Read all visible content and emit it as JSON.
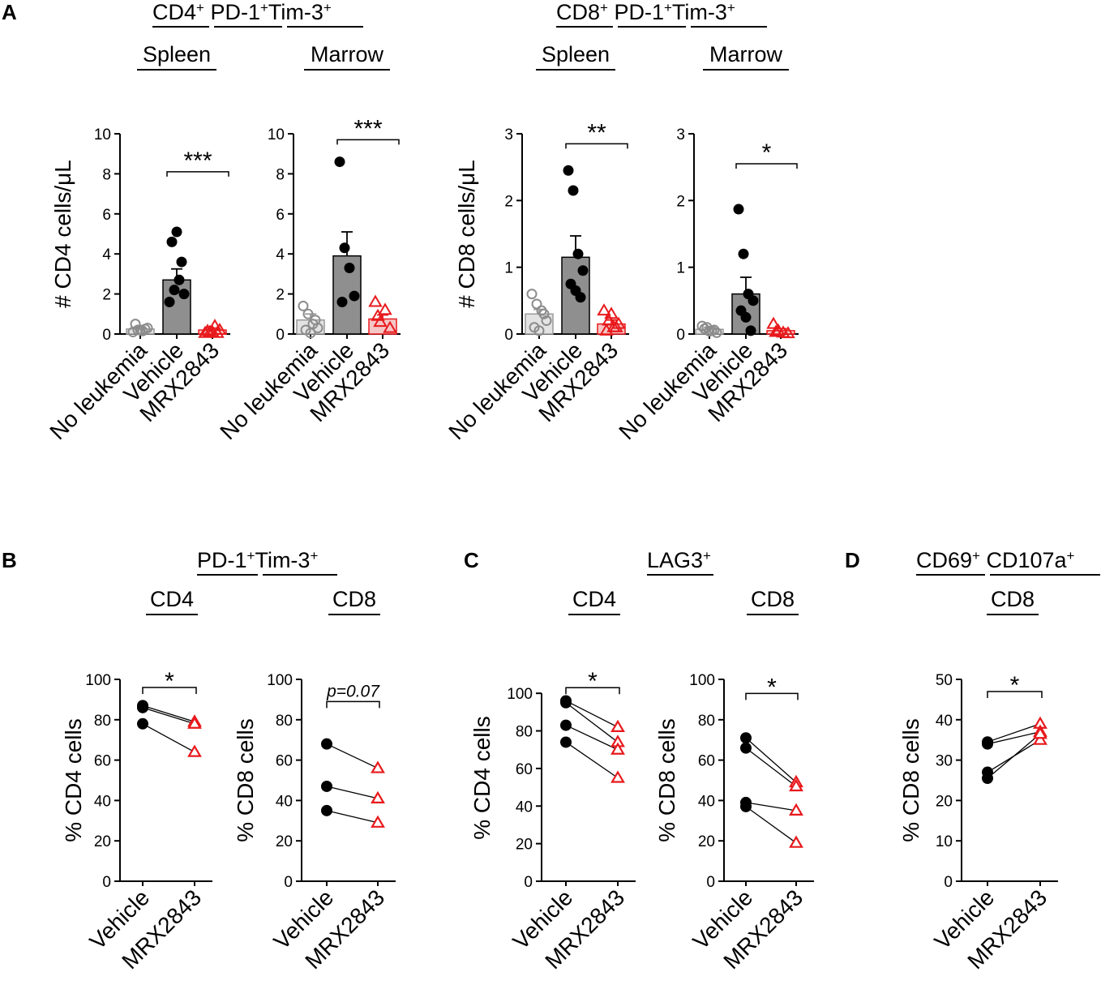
{
  "panel_letters": {
    "A": "A",
    "B": "B",
    "C": "C",
    "D": "D"
  },
  "headers": {
    "a_cd4": {
      "pre": "CD4",
      "mid": " PD-1",
      "post": "Tim-3"
    },
    "a_cd8": {
      "pre": "CD8",
      "mid": " PD-1",
      "post": "Tim-3"
    },
    "b": {
      "pre": "PD-1",
      "post": "Tim-3"
    },
    "c": {
      "pre": "LAG3"
    },
    "d": {
      "pre": "CD69",
      "post": " CD107a"
    }
  },
  "sup": "+",
  "colors": {
    "gray_open": "#8c8c8c",
    "black": "#000000",
    "red": "#e8191c",
    "bar_gray": "#e3e3e3",
    "bar_dark": "#8f8f8f",
    "bar_red": "#f5c6c6"
  },
  "chart_data": [
    {
      "id": "A_CD4_Spleen",
      "type": "bar",
      "title": "Spleen",
      "ylabel": "# CD4 cells/μL",
      "ylim": [
        0,
        10
      ],
      "yticks": [
        0,
        2,
        4,
        6,
        8,
        10
      ],
      "categories": [
        "No leukemia",
        "Vehicle",
        "MRX2843"
      ],
      "means": [
        0.25,
        2.7,
        0.2
      ],
      "sem": [
        0.1,
        0.55,
        0.1
      ],
      "points": [
        [
          0.1,
          0.2,
          0.15,
          0.3,
          0.5,
          0.2,
          0.25
        ],
        [
          1.6,
          2.2,
          2.7,
          2.0,
          4.6,
          5.1,
          3.6
        ],
        [
          0.05,
          0.1,
          0.4,
          0.2,
          0.15,
          0.1,
          0.05
        ]
      ],
      "significance": {
        "label": "***",
        "between": [
          "Vehicle",
          "MRX2843"
        ],
        "level": 8.1
      }
    },
    {
      "id": "A_CD4_Marrow",
      "type": "bar",
      "title": "Marrow",
      "ylabel": "",
      "ylim": [
        0,
        10
      ],
      "yticks": [
        0,
        2,
        4,
        6,
        8,
        10
      ],
      "categories": [
        "No leukemia",
        "Vehicle",
        "MRX2843"
      ],
      "means": [
        0.7,
        3.9,
        0.75
      ],
      "sem": [
        0.3,
        1.2,
        0.2
      ],
      "points": [
        [
          1.4,
          1.0,
          0.5,
          0.3,
          0.2,
          0.05,
          0.7
        ],
        [
          8.6,
          4.3,
          3.3,
          1.9,
          1.6
        ],
        [
          1.6,
          0.6,
          1.2,
          0.3,
          0.9
        ]
      ],
      "significance": {
        "label": "***",
        "between": [
          "Vehicle",
          "MRX2843"
        ],
        "level": 9.7
      }
    },
    {
      "id": "A_CD8_Spleen",
      "type": "bar",
      "title": "Spleen",
      "ylabel": "# CD8 cells/μL",
      "ylim": [
        0,
        3
      ],
      "yticks": [
        0,
        1,
        2,
        3
      ],
      "categories": [
        "No leukemia",
        "Vehicle",
        "MRX2843"
      ],
      "means": [
        0.3,
        1.15,
        0.15
      ],
      "sem": [
        0.07,
        0.32,
        0.06
      ],
      "points": [
        [
          0.6,
          0.45,
          0.35,
          0.2,
          0.1,
          0.05,
          0.3
        ],
        [
          2.45,
          2.15,
          1.2,
          0.95,
          0.75,
          0.65,
          0.55
        ],
        [
          0.35,
          0.2,
          0.1,
          0.15,
          0.05,
          0.3,
          0.1
        ]
      ],
      "significance": {
        "label": "**",
        "between": [
          "Vehicle",
          "MRX2843"
        ],
        "level": 2.85
      }
    },
    {
      "id": "A_CD8_Marrow",
      "type": "bar",
      "title": "Marrow",
      "ylabel": "",
      "ylim": [
        0,
        3
      ],
      "yticks": [
        0,
        1,
        2,
        3
      ],
      "categories": [
        "No leukemia",
        "Vehicle",
        "MRX2843"
      ],
      "means": [
        0.07,
        0.6,
        0.05
      ],
      "sem": [
        0.03,
        0.25,
        0.03
      ],
      "points": [
        [
          0.12,
          0.1,
          0.05,
          0.02,
          0.08,
          0.04,
          0.06
        ],
        [
          1.87,
          1.2,
          0.6,
          0.5,
          0.35,
          0.25,
          0.05
        ],
        [
          0.15,
          0.05,
          0.02,
          0.01,
          0.03
        ]
      ],
      "significance": {
        "label": "*",
        "between": [
          "Vehicle",
          "MRX2843"
        ],
        "level": 2.55
      }
    },
    {
      "id": "B_CD4",
      "type": "paired",
      "title": "CD4",
      "ylabel": "% CD4 cells",
      "ylim": [
        0,
        100
      ],
      "yticks": [
        0,
        20,
        40,
        60,
        80,
        100
      ],
      "categories": [
        "Vehicle",
        "MRX2843"
      ],
      "pairs": [
        [
          87,
          79
        ],
        [
          86,
          78
        ],
        [
          78,
          64
        ]
      ],
      "significance": {
        "label": "*",
        "level": 96
      }
    },
    {
      "id": "B_CD8",
      "type": "paired",
      "title": "CD8",
      "ylabel": "% CD8 cells",
      "ylim": [
        0,
        100
      ],
      "yticks": [
        0,
        20,
        40,
        60,
        80,
        100
      ],
      "categories": [
        "Vehicle",
        "MRX2843"
      ],
      "pairs": [
        [
          68,
          56
        ],
        [
          47,
          41
        ],
        [
          35,
          29
        ]
      ],
      "significance": {
        "label": "p=0.07",
        "level": 89
      }
    },
    {
      "id": "C_CD4",
      "type": "paired",
      "title": "CD4",
      "ylabel": "% CD4 cells",
      "ylim": [
        0,
        110
      ],
      "yticks": [
        0,
        20,
        40,
        60,
        80,
        100
      ],
      "categories": [
        "Vehicle",
        "MRX2843"
      ],
      "pairs": [
        [
          96,
          82
        ],
        [
          95,
          74
        ],
        [
          83,
          70
        ],
        [
          74,
          55
        ]
      ],
      "significance": {
        "label": "*",
        "level": 103
      }
    },
    {
      "id": "C_CD8",
      "type": "paired",
      "title": "CD8",
      "ylabel": "% CD8 cells",
      "ylim": [
        0,
        100
      ],
      "yticks": [
        0,
        20,
        40,
        60,
        80,
        100
      ],
      "categories": [
        "Vehicle",
        "MRX2843"
      ],
      "pairs": [
        [
          71,
          49
        ],
        [
          66,
          47
        ],
        [
          39,
          35
        ],
        [
          37,
          19
        ]
      ],
      "significance": {
        "label": "*",
        "level": 93
      }
    },
    {
      "id": "D_CD8",
      "type": "paired",
      "title": "CD8",
      "ylabel": "% CD8 cells",
      "ylim": [
        0,
        50
      ],
      "yticks": [
        0,
        10,
        20,
        30,
        40,
        50
      ],
      "categories": [
        "Vehicle",
        "MRX2843"
      ],
      "pairs": [
        [
          34.5,
          39
        ],
        [
          34,
          37
        ],
        [
          27,
          35
        ],
        [
          25.5,
          36.5
        ]
      ],
      "significance": {
        "label": "*",
        "level": 47
      }
    }
  ]
}
